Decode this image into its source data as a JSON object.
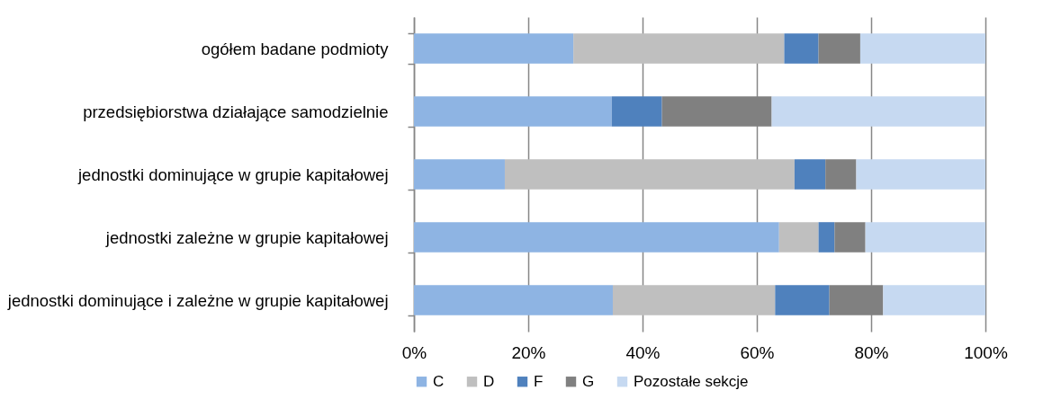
{
  "chart_data": {
    "type": "bar",
    "orientation": "horizontal",
    "stacked": true,
    "categories": [
      "ogółem badane podmioty",
      "przedsiębiorstwa działające samodzielnie",
      "jednostki dominujące w grupie kapitałowej",
      "jednostki zależne w grupie kapitałowej",
      "jednostki dominujące i zależne w grupie kapitałowej"
    ],
    "series": [
      {
        "name": "C",
        "color": "#8eb4e3",
        "values": [
          27.9,
          34.6,
          15.9,
          63.9,
          34.8
        ]
      },
      {
        "name": "D",
        "color": "#bfbfbf",
        "values": [
          36.9,
          0,
          50.7,
          6.9,
          28.4
        ]
      },
      {
        "name": "F",
        "color": "#4f81bd",
        "values": [
          6.0,
          8.8,
          5.4,
          2.8,
          9.5
        ]
      },
      {
        "name": "G",
        "color": "#808080",
        "values": [
          7.3,
          19.2,
          5.4,
          5.4,
          9.4
        ]
      },
      {
        "name": "Pozostałe sekcje",
        "color": "#c6d9f1",
        "values": [
          21.9,
          37.4,
          22.6,
          21.0,
          17.9
        ]
      }
    ],
    "xlim": [
      0,
      100
    ],
    "xticks": [
      {
        "value": 0,
        "label": "0%"
      },
      {
        "value": 20,
        "label": "20%"
      },
      {
        "value": 40,
        "label": "40%"
      },
      {
        "value": 60,
        "label": "60%"
      },
      {
        "value": 80,
        "label": "80%"
      },
      {
        "value": 100,
        "label": "100%"
      }
    ],
    "grid": "x",
    "legend": "bottom"
  }
}
